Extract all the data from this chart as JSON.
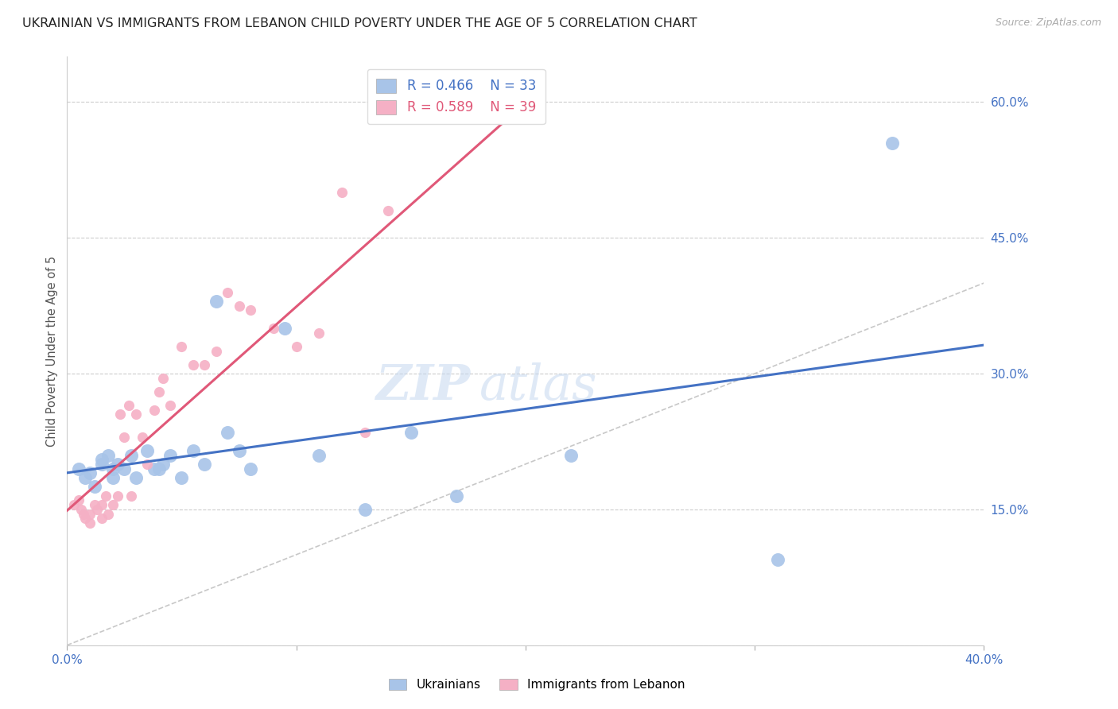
{
  "title": "UKRAINIAN VS IMMIGRANTS FROM LEBANON CHILD POVERTY UNDER THE AGE OF 5 CORRELATION CHART",
  "source": "Source: ZipAtlas.com",
  "ylabel": "Child Poverty Under the Age of 5",
  "xlim": [
    0.0,
    0.4
  ],
  "ylim": [
    0.0,
    0.65
  ],
  "yticks": [
    0.0,
    0.15,
    0.3,
    0.45,
    0.6
  ],
  "xticks": [
    0.0,
    0.1,
    0.2,
    0.3,
    0.4
  ],
  "ytick_labels": [
    "",
    "15.0%",
    "30.0%",
    "45.0%",
    "60.0%"
  ],
  "xtick_labels": [
    "0.0%",
    "",
    "",
    "",
    "40.0%"
  ],
  "ukrainian_color": "#a8c4e8",
  "lebanon_color": "#f5b0c5",
  "line_ukrainian_color": "#4472c4",
  "line_lebanon_color": "#e05878",
  "diag_color": "#c8c8c8",
  "legend_r_ukrainian": "R = 0.466",
  "legend_n_ukrainian": "N = 33",
  "legend_r_lebanon": "R = 0.589",
  "legend_n_lebanon": "N = 39",
  "ukrainian_x": [
    0.005,
    0.008,
    0.01,
    0.012,
    0.015,
    0.015,
    0.018,
    0.02,
    0.02,
    0.022,
    0.025,
    0.028,
    0.03,
    0.035,
    0.038,
    0.04,
    0.042,
    0.045,
    0.05,
    0.055,
    0.06,
    0.065,
    0.07,
    0.075,
    0.08,
    0.095,
    0.11,
    0.13,
    0.15,
    0.17,
    0.22,
    0.31,
    0.36
  ],
  "ukrainian_y": [
    0.195,
    0.185,
    0.19,
    0.175,
    0.2,
    0.205,
    0.21,
    0.195,
    0.185,
    0.2,
    0.195,
    0.21,
    0.185,
    0.215,
    0.195,
    0.195,
    0.2,
    0.21,
    0.185,
    0.215,
    0.2,
    0.38,
    0.235,
    0.215,
    0.195,
    0.35,
    0.21,
    0.15,
    0.235,
    0.165,
    0.21,
    0.095,
    0.555
  ],
  "lebanon_x": [
    0.003,
    0.005,
    0.006,
    0.007,
    0.008,
    0.01,
    0.01,
    0.012,
    0.013,
    0.015,
    0.015,
    0.017,
    0.018,
    0.02,
    0.022,
    0.023,
    0.025,
    0.027,
    0.028,
    0.03,
    0.033,
    0.035,
    0.038,
    0.04,
    0.042,
    0.045,
    0.05,
    0.055,
    0.06,
    0.065,
    0.07,
    0.075,
    0.08,
    0.09,
    0.1,
    0.11,
    0.12,
    0.13,
    0.14
  ],
  "lebanon_y": [
    0.155,
    0.16,
    0.15,
    0.145,
    0.14,
    0.135,
    0.145,
    0.155,
    0.15,
    0.14,
    0.155,
    0.165,
    0.145,
    0.155,
    0.165,
    0.255,
    0.23,
    0.265,
    0.165,
    0.255,
    0.23,
    0.2,
    0.26,
    0.28,
    0.295,
    0.265,
    0.33,
    0.31,
    0.31,
    0.325,
    0.39,
    0.375,
    0.37,
    0.35,
    0.33,
    0.345,
    0.5,
    0.235,
    0.48
  ],
  "watermark_line1": "ZIP",
  "watermark_line2": "atlas",
  "background_color": "#ffffff",
  "grid_color": "#cccccc",
  "title_fontsize": 11.5,
  "axis_label_color": "#4472c4"
}
